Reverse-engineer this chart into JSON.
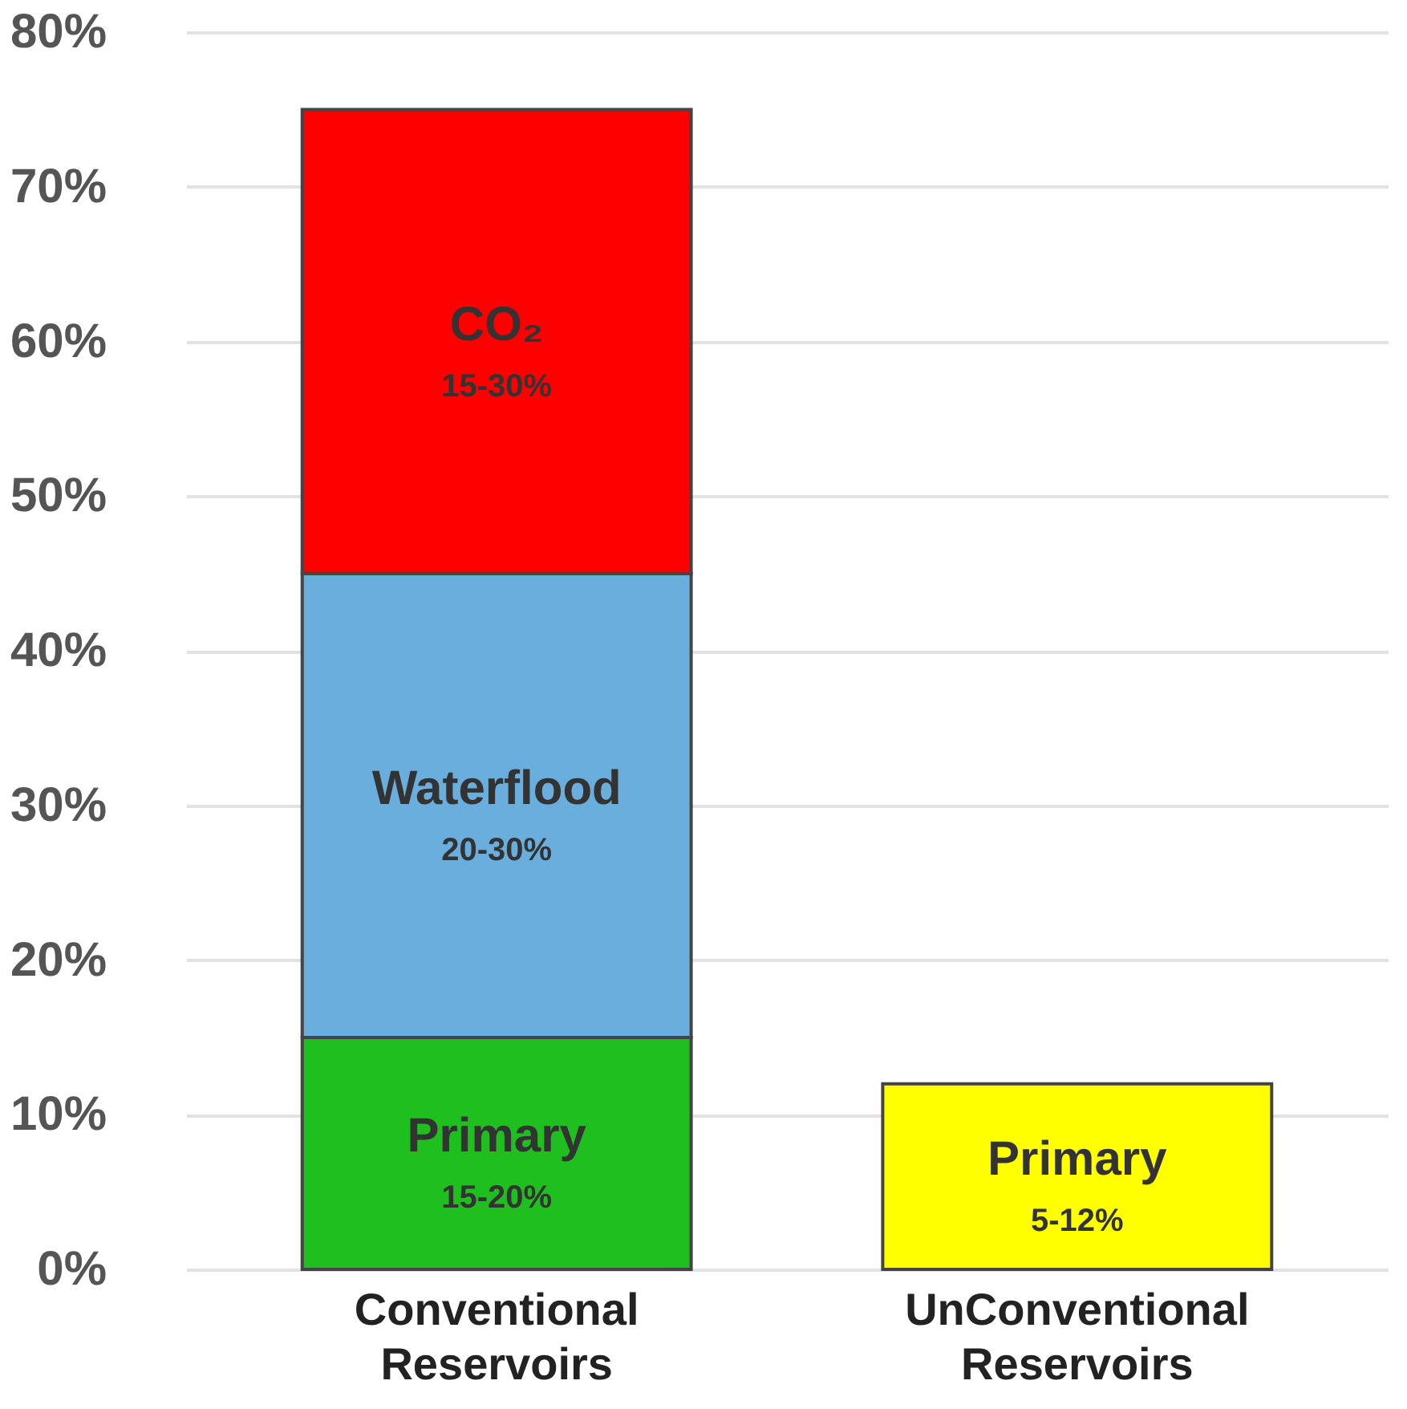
{
  "chart_data": {
    "type": "bar",
    "stacked": true,
    "categories": [
      "Conventional Reservoirs",
      "UnConventional Reservoirs"
    ],
    "series": [
      {
        "name": "Primary",
        "colors": [
          "#1fbf1f",
          "#ffff00"
        ],
        "values": [
          15,
          12
        ]
      },
      {
        "name": "Waterflood",
        "color": "#6aaede",
        "values": [
          30,
          null
        ]
      },
      {
        "name": "CO₂",
        "color": "#ff0000",
        "values": [
          30,
          null
        ]
      }
    ],
    "annotations": [
      "15-20%",
      "5-12%",
      "20-30%",
      "15-30%"
    ],
    "ylim": [
      0,
      80
    ],
    "yticks": [
      {
        "value": 0,
        "label": "0%"
      },
      {
        "value": 10,
        "label": "10%"
      },
      {
        "value": 20,
        "label": "20%"
      },
      {
        "value": 30,
        "label": "30%"
      },
      {
        "value": 40,
        "label": "40%"
      },
      {
        "value": 50,
        "label": "50%"
      },
      {
        "value": 60,
        "label": "60%"
      },
      {
        "value": 70,
        "label": "70%"
      },
      {
        "value": 80,
        "label": "80%"
      }
    ],
    "grid": "y"
  }
}
